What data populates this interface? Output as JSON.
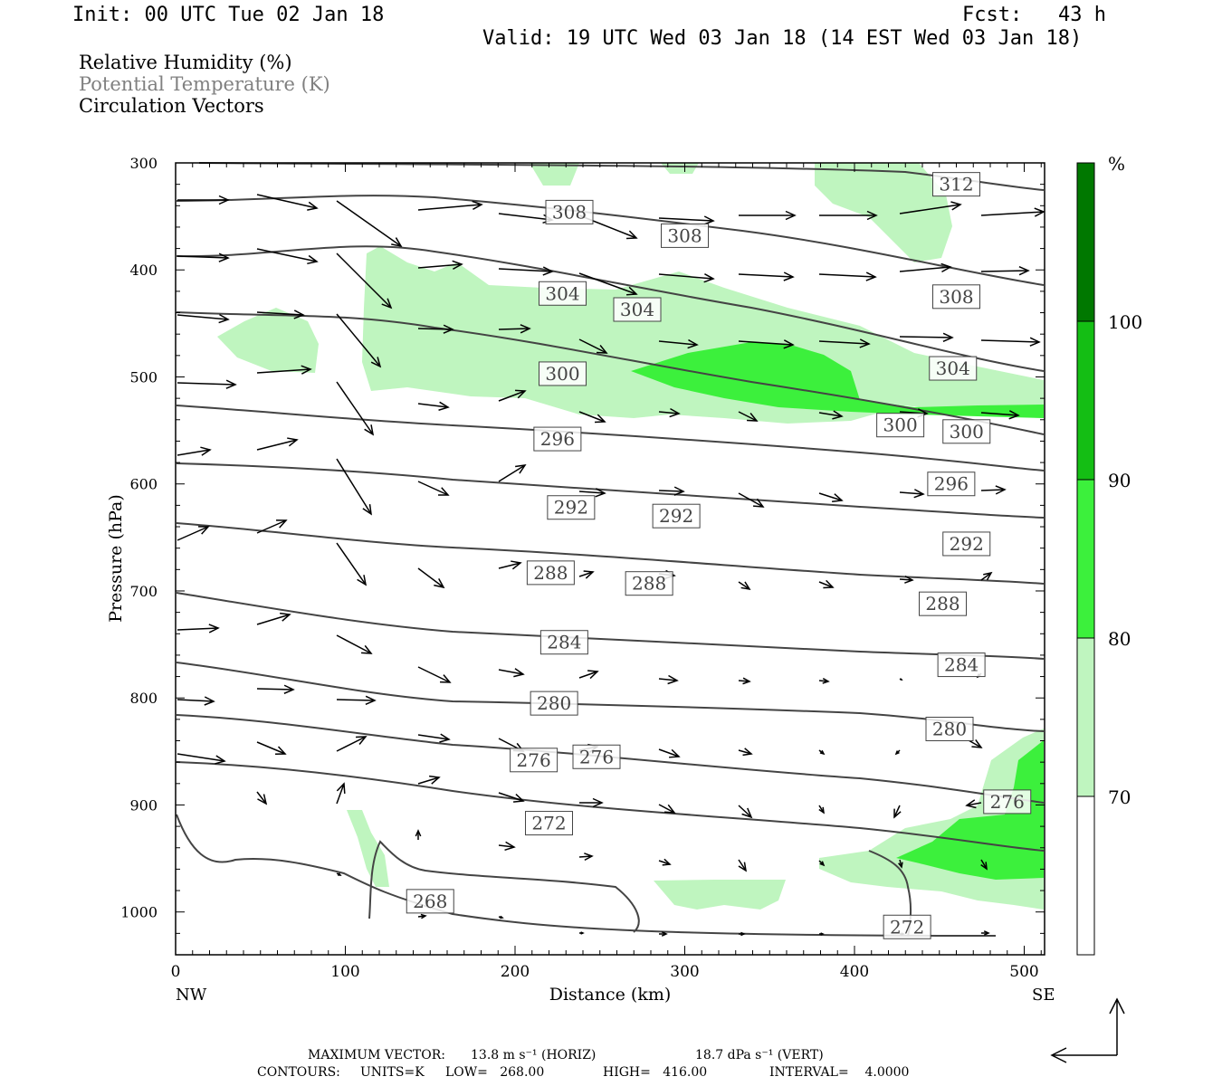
{
  "header": {
    "init": "Init: 00 UTC Tue 02 Jan 18",
    "fcst": "Fcst:   43 h",
    "valid": "Valid: 19 UTC Wed 03 Jan 18 (14 EST Wed 03 Jan 18)"
  },
  "fields": [
    {
      "label": "Relative Humidity (%)",
      "color": "#000000"
    },
    {
      "label": "Potential Temperature (K)",
      "color": "#808080"
    },
    {
      "label": "Circulation Vectors",
      "color": "#000000"
    }
  ],
  "footer": {
    "max_vector_label": "MAXIMUM VECTOR:",
    "max_vector_horiz": "13.8 m s⁻¹ (HORIZ)",
    "max_vector_vert": "18.7 dPa s⁻¹ (VERT)",
    "contours_label": "CONTOURS:",
    "units": "UNITS=K",
    "low": "LOW=   268.00",
    "high": "HIGH=   416.00",
    "interval": "INTERVAL=    4.0000"
  },
  "colors": {
    "rh_70_80": "#bff5bf",
    "rh_80_90": "#3cf03c",
    "rh_90_100": "#14be14",
    "rh_100": "#007800",
    "contour": "#444444",
    "vector": "#000000"
  },
  "chart_data": {
    "type": "heatmap",
    "title": "",
    "xlabel": "Distance (km)",
    "ylabel": "Pressure (hPa)",
    "xlim": [
      0,
      512
    ],
    "ylim": [
      1040,
      300
    ],
    "x_ticks": [
      0,
      100,
      200,
      300,
      400,
      500
    ],
    "y_ticks": [
      300,
      400,
      500,
      600,
      700,
      800,
      900,
      1000
    ],
    "x_endpoints": {
      "left": "NW",
      "right": "SE"
    },
    "colorbar": {
      "unit": "%",
      "levels": [
        70,
        80,
        90,
        100
      ],
      "colors": [
        "#ffffff",
        "#bff5bf",
        "#3cf03c",
        "#14be14",
        "#007800"
      ]
    },
    "contour_labels": [
      {
        "value": "312",
        "x": 460,
        "p": 320
      },
      {
        "value": "308",
        "x": 232,
        "p": 346
      },
      {
        "value": "308",
        "x": 300,
        "p": 368
      },
      {
        "value": "308",
        "x": 460,
        "p": 425
      },
      {
        "value": "304",
        "x": 228,
        "p": 422
      },
      {
        "value": "304",
        "x": 272,
        "p": 437
      },
      {
        "value": "304",
        "x": 458,
        "p": 492
      },
      {
        "value": "300",
        "x": 228,
        "p": 497
      },
      {
        "value": "300",
        "x": 427,
        "p": 545
      },
      {
        "value": "300",
        "x": 466,
        "p": 551
      },
      {
        "value": "296",
        "x": 225,
        "p": 558
      },
      {
        "value": "296",
        "x": 457,
        "p": 600
      },
      {
        "value": "292",
        "x": 233,
        "p": 622
      },
      {
        "value": "292",
        "x": 295,
        "p": 630
      },
      {
        "value": "292",
        "x": 466,
        "p": 656
      },
      {
        "value": "288",
        "x": 221,
        "p": 683
      },
      {
        "value": "288",
        "x": 279,
        "p": 693
      },
      {
        "value": "288",
        "x": 452,
        "p": 712
      },
      {
        "value": "284",
        "x": 229,
        "p": 748
      },
      {
        "value": "284",
        "x": 463,
        "p": 769
      },
      {
        "value": "280",
        "x": 223,
        "p": 805
      },
      {
        "value": "280",
        "x": 456,
        "p": 829
      },
      {
        "value": "276",
        "x": 211,
        "p": 858
      },
      {
        "value": "276",
        "x": 248,
        "p": 855
      },
      {
        "value": "276",
        "x": 490,
        "p": 897
      },
      {
        "value": "272",
        "x": 220,
        "p": 917
      },
      {
        "value": "272",
        "x": 431,
        "p": 1014
      },
      {
        "value": "268",
        "x": 150,
        "p": 990
      }
    ]
  }
}
